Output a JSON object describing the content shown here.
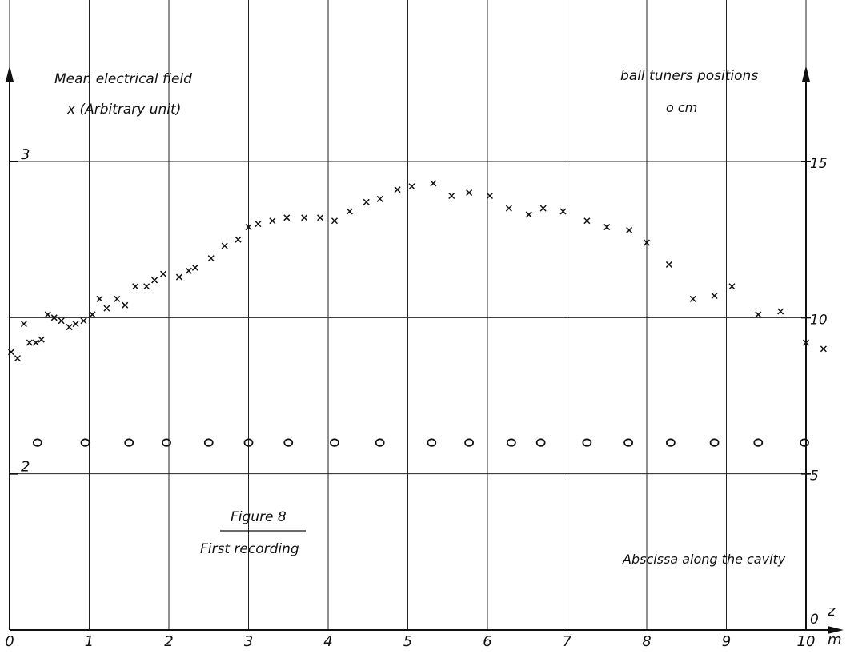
{
  "chart_data": {
    "type": "scatter",
    "x_axis": {
      "range": [
        0,
        10
      ],
      "ticks": [
        "0",
        "1",
        "2",
        "3",
        "4",
        "5",
        "6",
        "7",
        "8",
        "9",
        "10"
      ],
      "label": "z",
      "unit": "m"
    },
    "left_axis": {
      "range": [
        1.5,
        3.0
      ],
      "ticks": [
        "2",
        "3"
      ]
    },
    "right_axis": {
      "range": [
        0,
        15
      ],
      "ticks": [
        "0",
        "5",
        "10",
        "15"
      ]
    },
    "grid": "on",
    "annotations": {
      "left_title": "Mean electrical field",
      "left_subtitle": "x (Arbitrary unit)",
      "right_title": "ball tuners positions",
      "right_subtitle": "o   cm",
      "figure_title": "Figure 8",
      "figure_subtitle": "First recording",
      "abscissa_label": "Abscissa along the cavity"
    },
    "series": [
      {
        "marker": "x",
        "axis": "right",
        "points": [
          [
            0.02,
            8.9
          ],
          [
            0.1,
            8.7
          ],
          [
            0.18,
            9.8
          ],
          [
            0.25,
            9.2
          ],
          [
            0.33,
            9.2
          ],
          [
            0.4,
            9.3
          ],
          [
            0.48,
            10.1
          ],
          [
            0.56,
            10.0
          ],
          [
            0.65,
            9.9
          ],
          [
            0.75,
            9.7
          ],
          [
            0.83,
            9.8
          ],
          [
            0.93,
            9.9
          ],
          [
            1.04,
            10.1
          ],
          [
            1.13,
            10.6
          ],
          [
            1.22,
            10.3
          ],
          [
            1.35,
            10.6
          ],
          [
            1.45,
            10.4
          ],
          [
            1.58,
            11.0
          ],
          [
            1.72,
            11.0
          ],
          [
            1.82,
            11.2
          ],
          [
            1.93,
            11.4
          ],
          [
            2.13,
            11.3
          ],
          [
            2.25,
            11.5
          ],
          [
            2.33,
            11.6
          ],
          [
            2.53,
            11.9
          ],
          [
            2.7,
            12.3
          ],
          [
            2.87,
            12.5
          ],
          [
            3.0,
            12.9
          ],
          [
            3.12,
            13.0
          ],
          [
            3.3,
            13.1
          ],
          [
            3.48,
            13.2
          ],
          [
            3.7,
            13.2
          ],
          [
            3.9,
            13.2
          ],
          [
            4.08,
            13.1
          ],
          [
            4.27,
            13.4
          ],
          [
            4.48,
            13.7
          ],
          [
            4.65,
            13.8
          ],
          [
            4.87,
            14.1
          ],
          [
            5.05,
            14.2
          ],
          [
            5.32,
            14.3
          ],
          [
            5.55,
            13.9
          ],
          [
            5.77,
            14.0
          ],
          [
            6.03,
            13.9
          ],
          [
            6.27,
            13.5
          ],
          [
            6.52,
            13.3
          ],
          [
            6.7,
            13.5
          ],
          [
            6.95,
            13.4
          ],
          [
            7.25,
            13.1
          ],
          [
            7.5,
            12.9
          ],
          [
            7.78,
            12.8
          ],
          [
            8.0,
            12.4
          ],
          [
            8.28,
            11.7
          ],
          [
            8.58,
            10.6
          ],
          [
            8.85,
            10.7
          ],
          [
            9.07,
            11.0
          ],
          [
            9.4,
            10.1
          ],
          [
            9.68,
            10.2
          ],
          [
            10.0,
            9.2
          ],
          [
            10.22,
            9.0
          ]
        ]
      },
      {
        "marker": "o",
        "axis": "right",
        "points": [
          [
            0.35,
            6.0
          ],
          [
            0.95,
            6.0
          ],
          [
            1.5,
            6.0
          ],
          [
            1.97,
            6.0
          ],
          [
            2.5,
            6.0
          ],
          [
            3.0,
            6.0
          ],
          [
            3.5,
            6.0
          ],
          [
            4.08,
            6.0
          ],
          [
            4.65,
            6.0
          ],
          [
            5.3,
            6.0
          ],
          [
            5.77,
            6.0
          ],
          [
            6.3,
            6.0
          ],
          [
            6.67,
            6.0
          ],
          [
            7.25,
            6.0
          ],
          [
            7.77,
            6.0
          ],
          [
            8.3,
            6.0
          ],
          [
            8.85,
            6.0
          ],
          [
            9.4,
            6.0
          ],
          [
            9.98,
            6.0
          ]
        ]
      }
    ]
  }
}
